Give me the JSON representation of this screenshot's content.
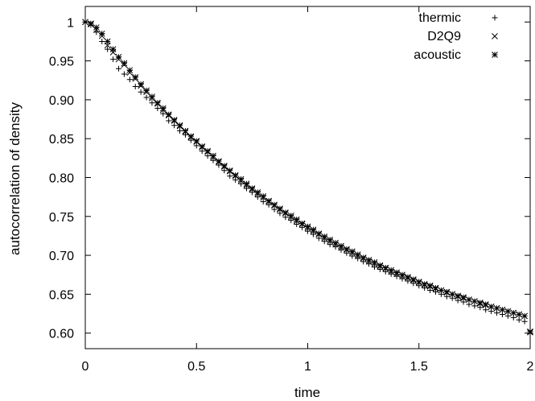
{
  "chart_data": {
    "type": "scatter",
    "title": "",
    "xlabel": "time",
    "ylabel": "autocorrelation of density",
    "xlim": [
      0,
      2
    ],
    "ylim": [
      0.58,
      1.02
    ],
    "grid": false,
    "legend_position": "top-right",
    "x_ticks": [
      0,
      0.5,
      1,
      1.5,
      2
    ],
    "x_tick_labels": [
      "0",
      "0.5",
      "1",
      "1.5",
      "2"
    ],
    "y_ticks": [
      0.6,
      0.65,
      0.7,
      0.75,
      0.8,
      0.85,
      0.9,
      0.95,
      1.0
    ],
    "y_tick_labels": [
      "0.60",
      "0.65",
      "0.70",
      "0.75",
      "0.80",
      "0.85",
      "0.90",
      "0.95",
      "1"
    ],
    "series": [
      {
        "name": "thermic",
        "marker": "plus",
        "x": [
          0,
          0.025,
          0.05,
          0.075,
          0.1,
          0.125,
          0.15,
          0.175,
          0.2,
          0.225,
          0.25,
          0.275,
          0.3,
          0.325,
          0.35,
          0.375,
          0.4,
          0.425,
          0.45,
          0.475,
          0.5,
          0.525,
          0.55,
          0.575,
          0.6,
          0.625,
          0.65,
          0.675,
          0.7,
          0.725,
          0.75,
          0.775,
          0.8,
          0.825,
          0.85,
          0.875,
          0.9,
          0.925,
          0.95,
          0.975,
          1.0,
          1.025,
          1.05,
          1.075,
          1.1,
          1.125,
          1.15,
          1.175,
          1.2,
          1.225,
          1.25,
          1.275,
          1.3,
          1.325,
          1.35,
          1.375,
          1.4,
          1.425,
          1.45,
          1.475,
          1.5,
          1.525,
          1.55,
          1.575,
          1.6,
          1.625,
          1.65,
          1.675,
          1.7,
          1.725,
          1.75,
          1.775,
          1.8,
          1.825,
          1.85,
          1.875,
          1.9,
          1.925,
          1.95,
          1.975,
          2.0
        ],
        "y": [
          1.0,
          0.996,
          0.987,
          0.975,
          0.965,
          0.952,
          0.94,
          0.933,
          0.926,
          0.917,
          0.91,
          0.903,
          0.896,
          0.889,
          0.882,
          0.873,
          0.867,
          0.86,
          0.855,
          0.848,
          0.841,
          0.834,
          0.828,
          0.822,
          0.816,
          0.809,
          0.802,
          0.797,
          0.792,
          0.786,
          0.781,
          0.775,
          0.769,
          0.765,
          0.759,
          0.754,
          0.749,
          0.745,
          0.74,
          0.736,
          0.731,
          0.727,
          0.722,
          0.718,
          0.714,
          0.711,
          0.707,
          0.703,
          0.699,
          0.696,
          0.692,
          0.689,
          0.685,
          0.682,
          0.679,
          0.676,
          0.673,
          0.67,
          0.667,
          0.664,
          0.661,
          0.658,
          0.655,
          0.653,
          0.65,
          0.647,
          0.645,
          0.642,
          0.64,
          0.637,
          0.635,
          0.633,
          0.63,
          0.628,
          0.626,
          0.624,
          0.622,
          0.62,
          0.617,
          0.615,
          0.6
        ]
      },
      {
        "name": "D2Q9",
        "marker": "cross",
        "x": [
          0,
          0.025,
          0.05,
          0.075,
          0.1,
          0.125,
          0.15,
          0.175,
          0.2,
          0.225,
          0.25,
          0.275,
          0.3,
          0.325,
          0.35,
          0.375,
          0.4,
          0.425,
          0.45,
          0.475,
          0.5,
          0.525,
          0.55,
          0.575,
          0.6,
          0.625,
          0.65,
          0.675,
          0.7,
          0.725,
          0.75,
          0.775,
          0.8,
          0.825,
          0.85,
          0.875,
          0.9,
          0.925,
          0.95,
          0.975,
          1.0,
          1.025,
          1.05,
          1.075,
          1.1,
          1.125,
          1.15,
          1.175,
          1.2,
          1.225,
          1.25,
          1.275,
          1.3,
          1.325,
          1.35,
          1.375,
          1.4,
          1.425,
          1.45,
          1.475,
          1.5,
          1.525,
          1.55,
          1.575,
          1.6,
          1.625,
          1.65,
          1.675,
          1.7,
          1.725,
          1.75,
          1.775,
          1.8,
          1.825,
          1.85,
          1.875,
          1.9,
          1.925,
          1.95,
          1.975,
          2.0
        ],
        "y": [
          1.0,
          0.997,
          0.99,
          0.982,
          0.97,
          0.961,
          0.952,
          0.945,
          0.935,
          0.927,
          0.918,
          0.91,
          0.902,
          0.895,
          0.887,
          0.88,
          0.873,
          0.866,
          0.859,
          0.852,
          0.846,
          0.839,
          0.833,
          0.826,
          0.82,
          0.814,
          0.808,
          0.802,
          0.796,
          0.79,
          0.785,
          0.779,
          0.774,
          0.769,
          0.764,
          0.759,
          0.754,
          0.749,
          0.744,
          0.74,
          0.735,
          0.731,
          0.727,
          0.722,
          0.718,
          0.714,
          0.71,
          0.707,
          0.703,
          0.699,
          0.696,
          0.692,
          0.689,
          0.686,
          0.683,
          0.679,
          0.676,
          0.673,
          0.671,
          0.668,
          0.665,
          0.662,
          0.66,
          0.657,
          0.655,
          0.652,
          0.65,
          0.647,
          0.645,
          0.643,
          0.641,
          0.638,
          0.636,
          0.634,
          0.632,
          0.63,
          0.628,
          0.626,
          0.624,
          0.622,
          0.601
        ]
      },
      {
        "name": "acoustic",
        "marker": "star",
        "x": [
          0,
          0.025,
          0.05,
          0.075,
          0.1,
          0.125,
          0.15,
          0.175,
          0.2,
          0.225,
          0.25,
          0.275,
          0.3,
          0.325,
          0.35,
          0.375,
          0.4,
          0.425,
          0.45,
          0.475,
          0.5,
          0.525,
          0.55,
          0.575,
          0.6,
          0.625,
          0.65,
          0.675,
          0.7,
          0.725,
          0.75,
          0.775,
          0.8,
          0.825,
          0.85,
          0.875,
          0.9,
          0.925,
          0.95,
          0.975,
          1.0,
          1.025,
          1.05,
          1.075,
          1.1,
          1.125,
          1.15,
          1.175,
          1.2,
          1.225,
          1.25,
          1.275,
          1.3,
          1.325,
          1.35,
          1.375,
          1.4,
          1.425,
          1.45,
          1.475,
          1.5,
          1.525,
          1.55,
          1.575,
          1.6,
          1.625,
          1.65,
          1.675,
          1.7,
          1.725,
          1.75,
          1.775,
          1.8,
          1.825,
          1.85,
          1.875,
          1.9,
          1.925,
          1.95,
          1.975,
          2.0
        ],
        "y": [
          1.0,
          0.998,
          0.993,
          0.985,
          0.975,
          0.965,
          0.955,
          0.947,
          0.938,
          0.929,
          0.92,
          0.912,
          0.904,
          0.896,
          0.889,
          0.881,
          0.874,
          0.867,
          0.86,
          0.853,
          0.847,
          0.84,
          0.834,
          0.828,
          0.821,
          0.815,
          0.809,
          0.803,
          0.798,
          0.792,
          0.786,
          0.781,
          0.776,
          0.77,
          0.765,
          0.76,
          0.755,
          0.751,
          0.746,
          0.741,
          0.737,
          0.733,
          0.728,
          0.724,
          0.72,
          0.716,
          0.712,
          0.708,
          0.705,
          0.701,
          0.697,
          0.694,
          0.691,
          0.687,
          0.684,
          0.681,
          0.678,
          0.675,
          0.672,
          0.669,
          0.666,
          0.663,
          0.661,
          0.658,
          0.655,
          0.653,
          0.65,
          0.648,
          0.646,
          0.643,
          0.641,
          0.639,
          0.637,
          0.634,
          0.632,
          0.63,
          0.628,
          0.626,
          0.624,
          0.622,
          0.602
        ]
      }
    ]
  }
}
